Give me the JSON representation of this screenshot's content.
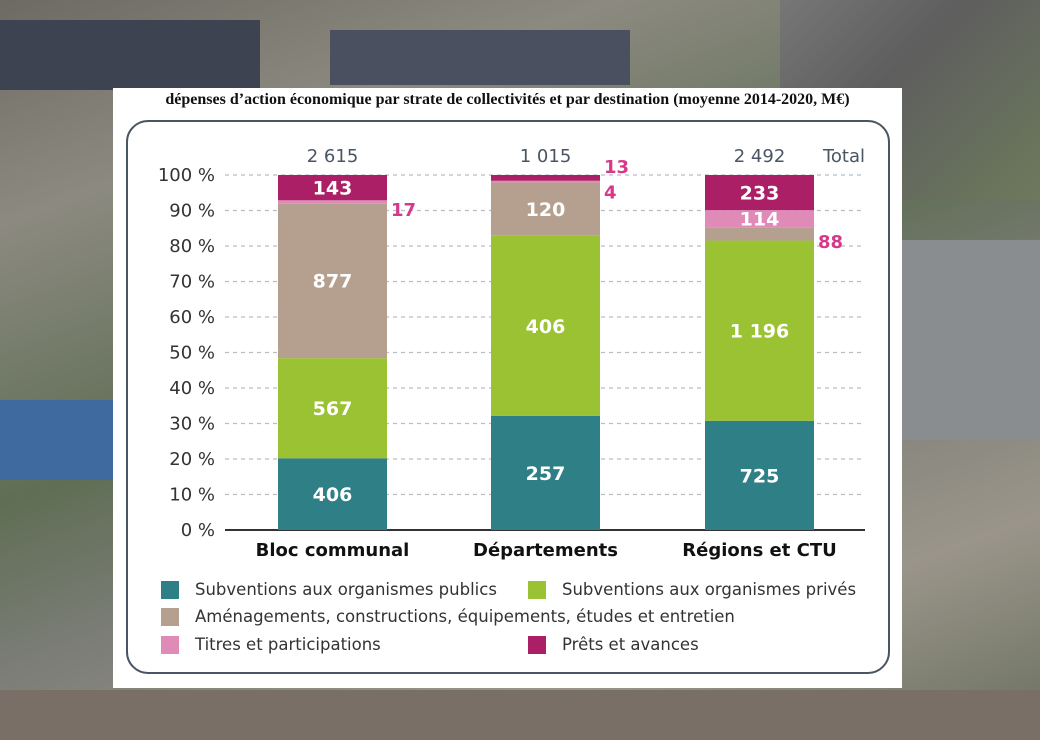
{
  "title": "dépenses d’action économique par strate de collectivités et par destination (moyenne 2014-2020, M€)",
  "chart_data": {
    "type": "bar",
    "stacked": true,
    "normalized": true,
    "categories": [
      "Bloc communal",
      "Départements",
      "Régions et CTU"
    ],
    "totals": [
      "2 615",
      "1 015",
      "2 492"
    ],
    "totals_label": "Total",
    "yticks": [
      "0 %",
      "10 %",
      "20 %",
      "30 %",
      "40 %",
      "50 %",
      "60 %",
      "70 %",
      "80 %",
      "90 %",
      "100 %"
    ],
    "ylim": [
      0,
      100
    ],
    "grid": true,
    "legend_position": "bottom",
    "series": [
      {
        "name": "Subventions aux organismes publics",
        "color": "#2f7f86",
        "values": [
          406,
          257,
          725
        ],
        "labels": [
          "406",
          "257",
          "725"
        ]
      },
      {
        "name": "Subventions aux organismes privés",
        "color": "#9bc232",
        "values": [
          567,
          406,
          1196
        ],
        "labels": [
          "567",
          "406",
          "1 196"
        ]
      },
      {
        "name": "Aménagements, constructions, équipements, études et entretien",
        "color": "#b5a08f",
        "values": [
          877,
          120,
          88
        ],
        "labels": [
          "877",
          "120",
          "88"
        ]
      },
      {
        "name": "Titres et participations",
        "color": "#e08ab8",
        "values": [
          17,
          4,
          114
        ],
        "labels": [
          "17",
          "4",
          "114"
        ]
      },
      {
        "name": "Prêts et avances",
        "color": "#ab1f66",
        "values": [
          143,
          13,
          233
        ],
        "labels": [
          "143",
          "13",
          "233"
        ]
      }
    ]
  }
}
